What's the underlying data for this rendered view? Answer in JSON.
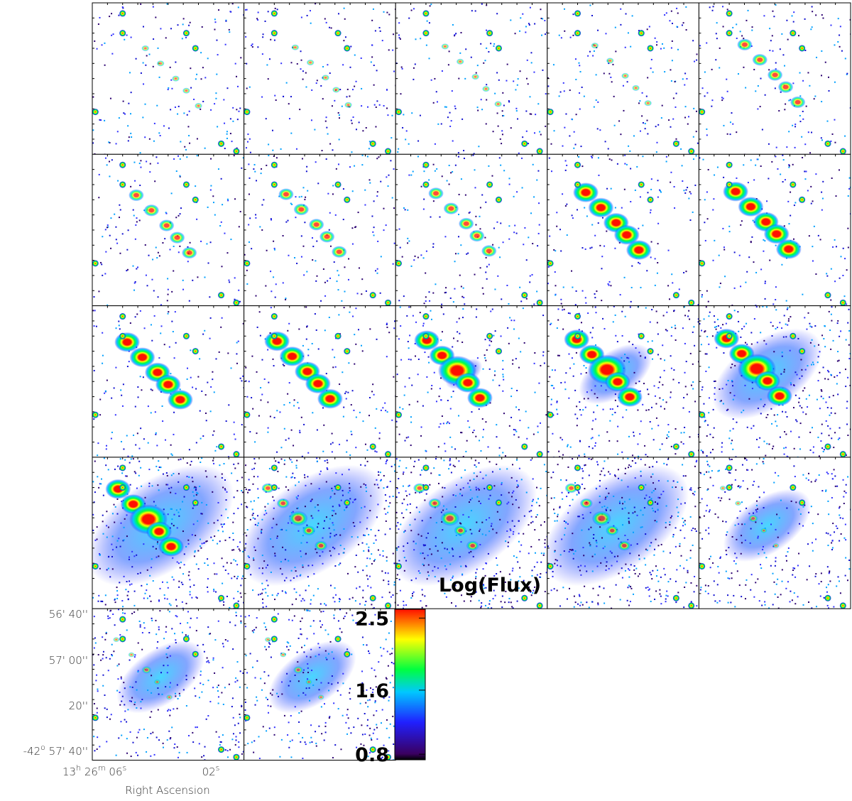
{
  "figure": {
    "colorbar": {
      "title": "Log(Flux)",
      "lim": [
        0.73,
        2.61
      ],
      "ticks": [
        0.8,
        1.6,
        2.5
      ]
    },
    "x_axis": {
      "title": "Right Ascension",
      "ticks": [
        [
          "13",
          "h",
          " 26",
          "m",
          " 06",
          "s"
        ],
        [
          "02",
          "s"
        ]
      ]
    },
    "y_axis": {
      "ticks": [
        [
          "56' 40''"
        ],
        [
          "57' 00''"
        ],
        [
          "20''"
        ],
        [
          "-42",
          "o",
          " 57' 40''"
        ]
      ]
    }
  }
}
